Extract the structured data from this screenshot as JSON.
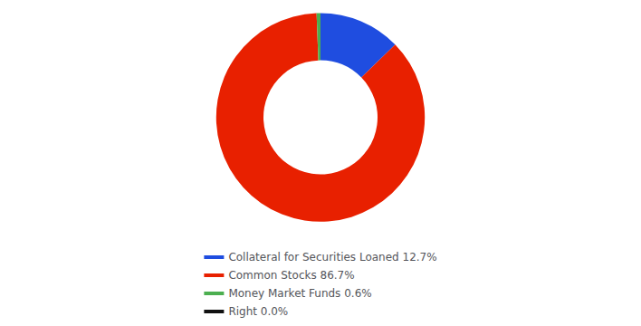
{
  "chart_data": {
    "type": "pie",
    "categories": [
      "Collateral for Securities Loaned 12.7%",
      "Common Stocks 86.7%",
      "Money Market Funds 0.6%",
      "Right 0.0%"
    ],
    "values": [
      12.7,
      86.7,
      0.6,
      0.0
    ],
    "colors": [
      "#1f4de0",
      "#e82000",
      "#4caf50",
      "#111111"
    ],
    "legend": "bottom"
  }
}
